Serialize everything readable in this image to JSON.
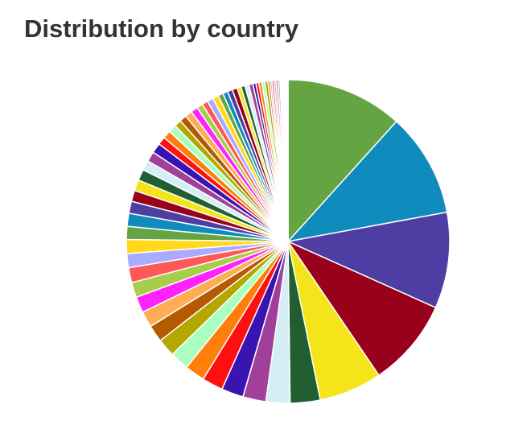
{
  "chart_data": {
    "type": "pie",
    "title": "Distribution by country",
    "values": [
      11.7,
      10.4,
      9.6,
      8.8,
      6.3,
      3.0,
      2.4,
      2.3,
      2.2,
      2.1,
      2.0,
      1.9,
      1.8,
      1.7,
      1.6,
      1.6,
      1.5,
      1.5,
      1.4,
      1.4,
      1.3,
      1.3,
      1.2,
      1.1,
      1.1,
      1.1,
      1.0,
      1.0,
      1.0,
      0.8,
      0.8,
      0.8,
      0.7,
      0.7,
      0.7,
      0.7,
      0.6,
      0.6,
      0.6,
      0.6,
      0.5,
      0.5,
      0.5,
      0.5,
      0.4,
      0.4,
      0.4,
      0.4,
      0.3,
      0.3,
      0.3,
      0.3,
      0.3,
      0.2,
      0.2,
      0.2,
      0.2,
      0.2,
      0.2,
      0.1,
      0.1,
      0.1,
      0.1,
      0.1,
      0.1,
      0.1,
      0.1
    ],
    "palette": [
      "#64a443",
      "#0f8bbd",
      "#4e3ea4",
      "#98001b",
      "#f4e51b",
      "#215f32",
      "#d5eef6",
      "#a1409a",
      "#3a14b0",
      "#ff1010",
      "#ff7f0a",
      "#aaffc0",
      "#b3a700",
      "#b55a00",
      "#ffad55",
      "#ff22ff",
      "#a8cd48",
      "#ff5858",
      "#aaaaff",
      "#ffd91a"
    ]
  }
}
